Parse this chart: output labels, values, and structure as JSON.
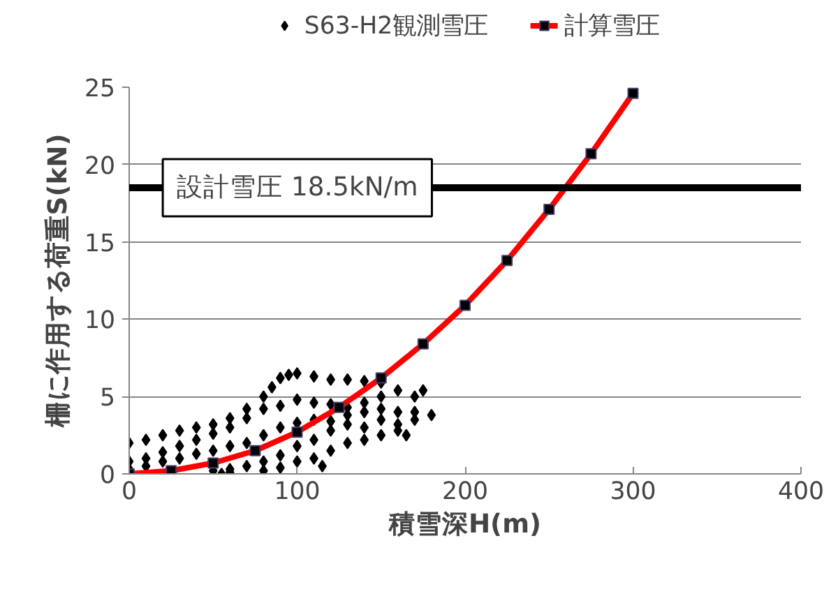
{
  "chart_data": {
    "type": "scatter",
    "xlabel": "積雪深H(m)",
    "ylabel": "柵に作用する荷重S(kN)",
    "xlim": [
      0,
      400
    ],
    "xticks": [
      0,
      100,
      200,
      300,
      400
    ],
    "ylim": [
      0,
      25
    ],
    "yticks": [
      0,
      5,
      10,
      15,
      20,
      25
    ],
    "grid": "y",
    "legend": "top",
    "series": [
      {
        "name": "S63-H2観測雪圧",
        "marker": "diamond",
        "color": "#000000",
        "x": [
          0,
          10,
          20,
          30,
          40,
          50,
          60,
          70,
          80,
          85,
          90,
          95,
          100,
          110,
          120,
          130,
          140,
          150,
          0,
          10,
          20,
          30,
          40,
          50,
          60,
          70,
          80,
          90,
          100,
          110,
          120,
          130,
          140,
          150,
          160,
          170,
          175,
          0,
          10,
          20,
          30,
          40,
          50,
          60,
          70,
          80,
          90,
          100,
          110,
          120,
          130,
          140,
          150,
          160,
          170,
          180,
          50,
          60,
          70,
          80,
          90,
          100,
          110,
          120,
          130,
          140,
          150,
          160,
          170,
          55,
          60,
          80,
          90,
          100,
          110,
          115,
          120,
          130,
          140,
          150,
          160,
          165
        ],
        "values": [
          2.0,
          2.2,
          2.5,
          2.8,
          3.0,
          3.2,
          3.6,
          4.2,
          5.0,
          5.6,
          6.2,
          6.4,
          6.5,
          6.3,
          6.1,
          6.1,
          6.0,
          5.9,
          0.8,
          1.0,
          1.4,
          1.8,
          2.2,
          2.6,
          3.0,
          3.6,
          4.2,
          4.4,
          4.8,
          4.6,
          4.5,
          4.3,
          4.6,
          5.0,
          5.4,
          5.0,
          5.4,
          0.3,
          0.5,
          0.8,
          1.0,
          1.3,
          1.5,
          1.8,
          2.0,
          2.5,
          3.0,
          3.3,
          3.5,
          3.4,
          3.8,
          4.0,
          4.2,
          4.0,
          4.0,
          3.8,
          0.2,
          0.3,
          0.5,
          0.8,
          1.2,
          1.8,
          2.2,
          2.8,
          3.2,
          3.0,
          3.5,
          3.2,
          3.5,
          0.0,
          0.1,
          0.2,
          0.4,
          0.8,
          1.0,
          0.5,
          1.5,
          2.0,
          2.2,
          2.5,
          2.8,
          2.5
        ]
      },
      {
        "name": "計算雪圧",
        "type": "line",
        "marker": "square",
        "color": "#ff0000",
        "x": [
          0,
          25,
          50,
          75,
          100,
          125,
          150,
          175,
          200,
          225,
          250,
          275,
          300
        ],
        "values": [
          0.0,
          0.2,
          0.7,
          1.5,
          2.7,
          4.3,
          6.2,
          8.4,
          10.9,
          13.8,
          17.1,
          20.7,
          24.6
        ]
      }
    ],
    "ref_lines": [
      {
        "axis": "y",
        "value": 18.5,
        "label": "設計雪圧 18.5kN/m",
        "color": "#000000"
      }
    ]
  }
}
